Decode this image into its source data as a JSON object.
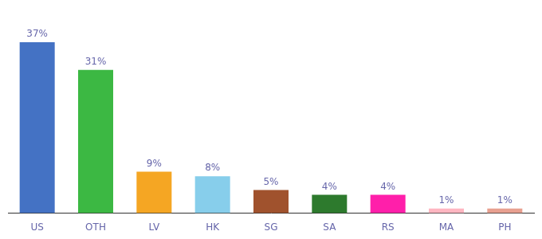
{
  "chart_data": {
    "type": "bar",
    "categories": [
      "US",
      "OTH",
      "LV",
      "HK",
      "SG",
      "SA",
      "RS",
      "MA",
      "PH"
    ],
    "values": [
      37,
      31,
      9,
      8,
      5,
      4,
      4,
      1,
      1
    ],
    "value_labels": [
      "37%",
      "31%",
      "9%",
      "8%",
      "5%",
      "4%",
      "4%",
      "1%",
      "1%"
    ],
    "colors": [
      "#4472c4",
      "#3cb843",
      "#f5a623",
      "#87ceeb",
      "#a0522d",
      "#2d7a2d",
      "#ff1faa",
      "#ffb6c1",
      "#e8a090"
    ],
    "ylim": [
      0,
      42
    ],
    "grid": false,
    "data_labels": true,
    "tick_labels": "x"
  }
}
